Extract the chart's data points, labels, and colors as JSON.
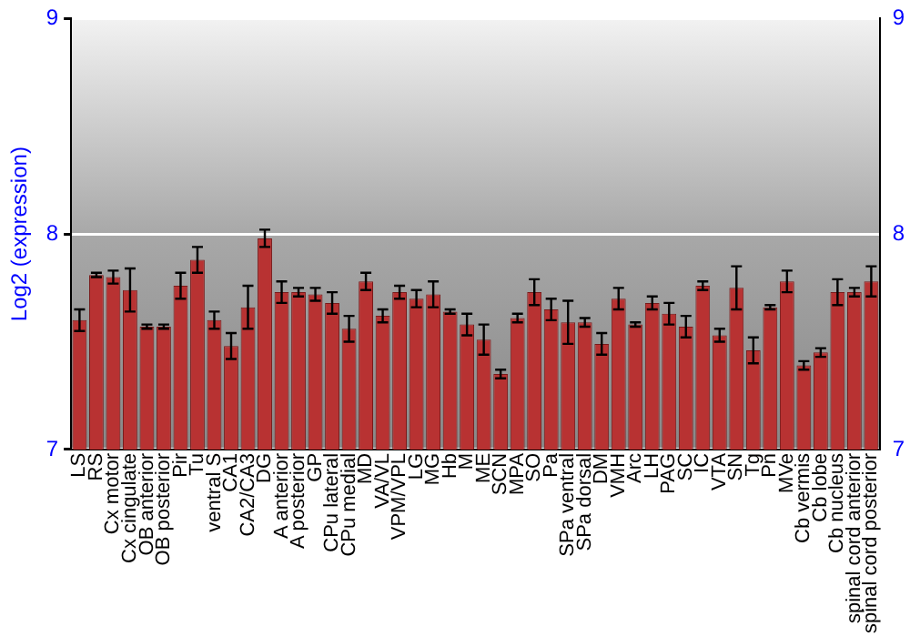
{
  "chart_data": {
    "type": "bar",
    "ylabel": "Log2 (expression)",
    "categories": [
      "LS",
      "RS",
      "Cx motor",
      "Cx cingulate",
      "OB anterior",
      "OB posterior",
      "Pir",
      "Tu",
      "ventral S",
      "CA1",
      "CA2/CA3",
      "DG",
      "A anterior",
      "A posterior",
      "GP",
      "CPu lateral",
      "CPu medial",
      "MD",
      "VA/VL",
      "VPM/VPL",
      "LG",
      "MG",
      "Hb",
      "M",
      "ME",
      "SCN",
      "MPA",
      "SO",
      "Pa",
      "SPa ventral",
      "SPa dorsal",
      "DM",
      "VMH",
      "Arc",
      "LH",
      "PAG",
      "SC",
      "IC",
      "VTA",
      "SN",
      "Tg",
      "Pn",
      "MVe",
      "Cb vermis",
      "Cb lobe",
      "Cb nucleus",
      "spinal cord anterior",
      "spinal cord posterior"
    ],
    "values": [
      7.6,
      7.81,
      7.8,
      7.74,
      7.57,
      7.57,
      7.76,
      7.88,
      7.6,
      7.48,
      7.66,
      7.98,
      7.73,
      7.73,
      7.72,
      7.68,
      7.56,
      7.78,
      7.62,
      7.73,
      7.7,
      7.72,
      7.64,
      7.58,
      7.51,
      7.35,
      7.61,
      7.73,
      7.65,
      7.59,
      7.59,
      7.49,
      7.7,
      7.58,
      7.68,
      7.63,
      7.57,
      7.76,
      7.53,
      7.75,
      7.46,
      7.66,
      7.78,
      7.39,
      7.45,
      7.73,
      7.73,
      7.78
    ],
    "errors": [
      0.05,
      0.01,
      0.03,
      0.1,
      0.01,
      0.01,
      0.06,
      0.06,
      0.04,
      0.06,
      0.1,
      0.04,
      0.05,
      0.02,
      0.03,
      0.05,
      0.06,
      0.04,
      0.03,
      0.03,
      0.04,
      0.06,
      0.01,
      0.05,
      0.07,
      0.02,
      0.02,
      0.06,
      0.05,
      0.1,
      0.02,
      0.05,
      0.05,
      0.01,
      0.03,
      0.05,
      0.05,
      0.02,
      0.03,
      0.1,
      0.06,
      0.01,
      0.05,
      0.02,
      0.02,
      0.06,
      0.02,
      0.07
    ],
    "color": "#b83232",
    "ylim": [
      7,
      9
    ],
    "yticks": [
      7,
      8,
      9
    ],
    "y2lim": [
      7,
      9
    ],
    "y2ticks": [
      7,
      8,
      9
    ],
    "grid": "y",
    "legend": false
  }
}
